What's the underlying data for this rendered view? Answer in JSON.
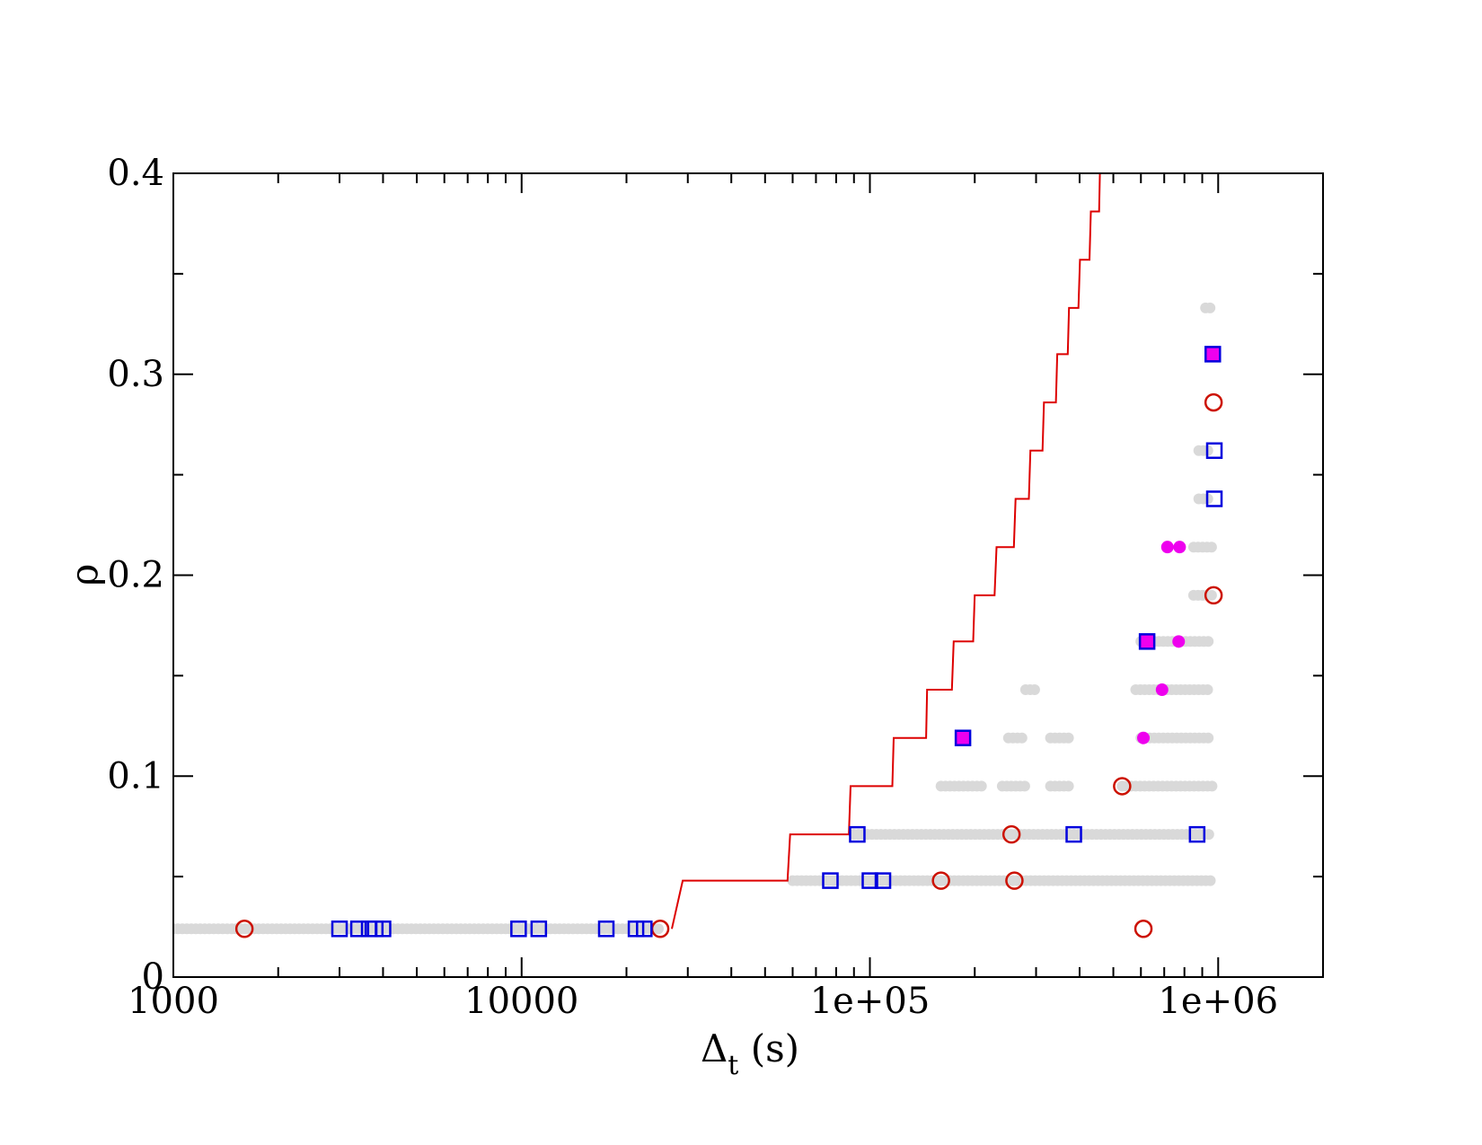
{
  "chart_data": {
    "type": "scatter",
    "title": "",
    "xlabel": "Δ",
    "xlabel_subscript": "t",
    "xlabel_suffix": " (s)",
    "ylabel": "ρ",
    "xscale": "log",
    "xlim": [
      1000,
      2000000
    ],
    "ylim": [
      0,
      0.4
    ],
    "xticks": [
      1000,
      10000,
      100000,
      1000000
    ],
    "xtick_labels": [
      "1000",
      "10000",
      "1e+05",
      "1e+06"
    ],
    "yticks": [
      0,
      0.1,
      0.2,
      0.3,
      0.4
    ],
    "ytick_labels": [
      "0",
      "0.1",
      "0.2",
      "0.3",
      "0.4"
    ],
    "grid": false,
    "legend": "none",
    "colors": {
      "grey": "#d9d9d9",
      "red": "#cc1100",
      "blue": "#0000dd",
      "magenta": "#ee00ee",
      "line": "#dd0000"
    },
    "background_runs": [
      {
        "y": 0.024,
        "x_from": 1000,
        "x_to": 25000
      },
      {
        "y": 0.048,
        "x_from": 60000,
        "x_to": 950000
      },
      {
        "y": 0.071,
        "x_from": 90000,
        "x_to": 960000
      },
      {
        "y": 0.095,
        "x_from": 160000,
        "x_to": 210000
      },
      {
        "y": 0.095,
        "x_from": 240000,
        "x_to": 280000
      },
      {
        "y": 0.095,
        "x_from": 330000,
        "x_to": 380000
      },
      {
        "y": 0.095,
        "x_from": 530000,
        "x_to": 960000
      },
      {
        "y": 0.119,
        "x_from": 250000,
        "x_to": 280000
      },
      {
        "y": 0.119,
        "x_from": 330000,
        "x_to": 380000
      },
      {
        "y": 0.119,
        "x_from": 600000,
        "x_to": 960000
      },
      {
        "y": 0.143,
        "x_from": 280000,
        "x_to": 300000
      },
      {
        "y": 0.143,
        "x_from": 580000,
        "x_to": 960000
      },
      {
        "y": 0.167,
        "x_from": 600000,
        "x_to": 960000
      },
      {
        "y": 0.19,
        "x_from": 850000,
        "x_to": 960000
      },
      {
        "y": 0.214,
        "x_from": 850000,
        "x_to": 960000
      },
      {
        "y": 0.238,
        "x_from": 880000,
        "x_to": 960000
      },
      {
        "y": 0.262,
        "x_from": 880000,
        "x_to": 960000
      },
      {
        "y": 0.333,
        "x_from": 920000,
        "x_to": 960000
      }
    ],
    "series": [
      {
        "marker": "open-circle",
        "points": [
          [
            1600,
            0.024
          ],
          [
            25000,
            0.024
          ],
          [
            610000,
            0.024
          ],
          [
            160000,
            0.048
          ],
          [
            260000,
            0.048
          ],
          [
            255000,
            0.071
          ],
          [
            530000,
            0.095
          ],
          [
            970000,
            0.19
          ],
          [
            970000,
            0.286
          ]
        ]
      },
      {
        "marker": "open-square",
        "points": [
          [
            3000,
            0.024
          ],
          [
            3400,
            0.024
          ],
          [
            3650,
            0.024
          ],
          [
            3800,
            0.024
          ],
          [
            4000,
            0.024
          ],
          [
            9800,
            0.024
          ],
          [
            11200,
            0.024
          ],
          [
            17500,
            0.024
          ],
          [
            21300,
            0.024
          ],
          [
            22500,
            0.024
          ],
          [
            77000,
            0.048
          ],
          [
            100000,
            0.048
          ],
          [
            109000,
            0.048
          ],
          [
            92000,
            0.071
          ],
          [
            385000,
            0.071
          ],
          [
            870000,
            0.071
          ],
          [
            975000,
            0.238
          ],
          [
            975000,
            0.262
          ]
        ]
      },
      {
        "marker": "filled-circle",
        "points": [
          [
            610000,
            0.119
          ],
          [
            690000,
            0.143
          ],
          [
            770000,
            0.167
          ],
          [
            715000,
            0.214
          ],
          [
            775000,
            0.214
          ]
        ]
      },
      {
        "marker": "filled-square",
        "points": [
          [
            185000,
            0.119
          ],
          [
            625000,
            0.167
          ],
          [
            965000,
            0.31
          ]
        ]
      },
      {
        "marker": "step-line",
        "points": [
          [
            27000,
            0.024
          ],
          [
            29000,
            0.048
          ],
          [
            58000,
            0.048
          ],
          [
            59000,
            0.071
          ],
          [
            87000,
            0.071
          ],
          [
            88000,
            0.095
          ],
          [
            116000,
            0.095
          ],
          [
            117000,
            0.119
          ],
          [
            145000,
            0.119
          ],
          [
            146000,
            0.143
          ],
          [
            172000,
            0.143
          ],
          [
            174000,
            0.167
          ],
          [
            198000,
            0.167
          ],
          [
            200000,
            0.19
          ],
          [
            228000,
            0.19
          ],
          [
            231000,
            0.214
          ],
          [
            259000,
            0.214
          ],
          [
            262000,
            0.238
          ],
          [
            286000,
            0.238
          ],
          [
            289000,
            0.262
          ],
          [
            313000,
            0.262
          ],
          [
            316000,
            0.286
          ],
          [
            342000,
            0.286
          ],
          [
            345000,
            0.31
          ],
          [
            370000,
            0.31
          ],
          [
            373000,
            0.333
          ],
          [
            397000,
            0.333
          ],
          [
            401000,
            0.357
          ],
          [
            427000,
            0.357
          ],
          [
            431000,
            0.381
          ],
          [
            455000,
            0.381
          ],
          [
            458000,
            0.405
          ]
        ]
      }
    ]
  }
}
